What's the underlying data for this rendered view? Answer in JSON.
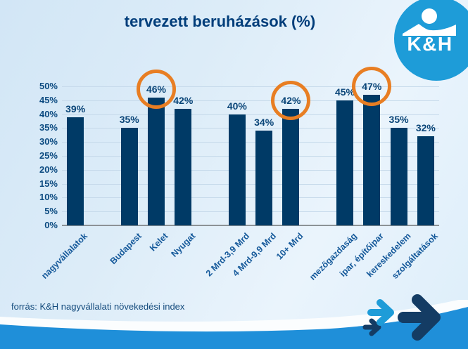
{
  "title": "tervezett beruházások (%)",
  "logo": {
    "brand": "K&H"
  },
  "footer": {
    "source": "forrás: K&H nagyvállalati növekedési index"
  },
  "colors": {
    "bar": "#003A66",
    "title_text": "#003D7A",
    "tick_text": "#0B4A80",
    "category_text": "#15599A",
    "grid": "#C5D9EA",
    "axis": "#8C9296",
    "highlight_circle": "#E87E23",
    "logo_blue": "#1E9CD8",
    "footer_band": "#1F8FD9",
    "arrow_dark": "#143C64",
    "arrow_light": "#1E9CD8"
  },
  "chart_data": {
    "type": "bar",
    "title": "tervezett beruházások (%)",
    "categories": [
      "nagyvállalatok",
      "Budapest",
      "Kelet",
      "Nyugat",
      "2 Mrd-3,9 Mrd",
      "4 Mrd-9,9 Mrd",
      "10+ Mrd",
      "mezőgazdaság",
      "ipar, építőipar",
      "kereskedelem",
      "szolgáltatások"
    ],
    "groups": [
      [
        "nagyvállalatok"
      ],
      [
        "Budapest",
        "Kelet",
        "Nyugat"
      ],
      [
        "2 Mrd-3,9 Mrd",
        "4 Mrd-9,9 Mrd",
        "10+ Mrd"
      ],
      [
        "mezőgazdaság",
        "ipar, építőipar",
        "kereskedelem",
        "szolgáltatások"
      ]
    ],
    "values": [
      39,
      35,
      46,
      42,
      40,
      34,
      42,
      45,
      47,
      35,
      32
    ],
    "unit": "%",
    "ylim": [
      0,
      50
    ],
    "ytick_step": 5,
    "circled_categories": [
      "Kelet",
      "10+ Mrd",
      "ipar, építőipar"
    ],
    "grid": true,
    "legend": null,
    "xlabel": "",
    "ylabel": ""
  }
}
